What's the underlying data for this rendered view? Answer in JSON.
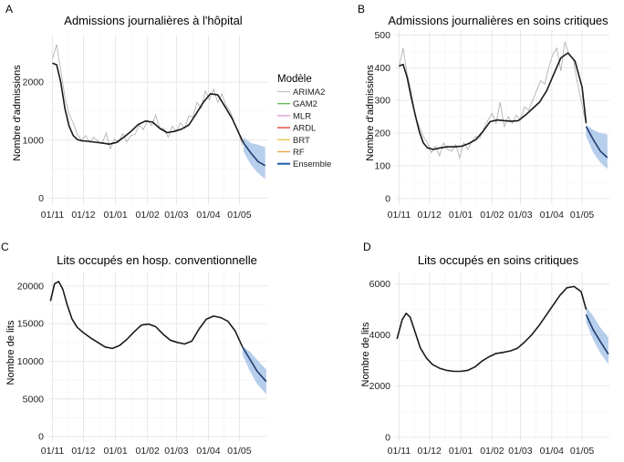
{
  "chart_data": [
    {
      "type": "line",
      "panel_label": "A",
      "title": "Admissions journalières à l'hôpital",
      "ylabel": "Nombre d'admissions",
      "xlabel": "",
      "xlim": [
        "2020-10-28",
        "2021-05-28"
      ],
      "ylim": [
        -120,
        2820
      ],
      "yticks": [
        0,
        1000,
        2000
      ],
      "xticks": [
        {
          "date": "2020-11-01",
          "label": "01/11"
        },
        {
          "date": "2020-12-01",
          "label": "01/12"
        },
        {
          "date": "2021-01-01",
          "label": "01/01"
        },
        {
          "date": "2021-02-01",
          "label": "01/02"
        },
        {
          "date": "2021-03-01",
          "label": "01/03"
        },
        {
          "date": "2021-04-01",
          "label": "01/04"
        },
        {
          "date": "2021-05-01",
          "label": "01/05"
        }
      ],
      "observed": {
        "x": [
          "2020-11-01",
          "2020-11-05",
          "2020-11-09",
          "2020-11-13",
          "2020-11-17",
          "2020-11-21",
          "2020-11-25",
          "2020-11-29",
          "2020-12-03",
          "2020-12-07",
          "2020-12-11",
          "2020-12-15",
          "2020-12-19",
          "2020-12-23",
          "2020-12-27",
          "2020-12-31",
          "2021-01-04",
          "2021-01-08",
          "2021-01-12",
          "2021-01-16",
          "2021-01-20",
          "2021-01-24",
          "2021-01-28",
          "2021-02-01",
          "2021-02-05",
          "2021-02-09",
          "2021-02-13",
          "2021-02-17",
          "2021-02-21",
          "2021-02-25",
          "2021-03-01",
          "2021-03-05",
          "2021-03-09",
          "2021-03-13",
          "2021-03-17",
          "2021-03-21",
          "2021-03-25",
          "2021-03-29",
          "2021-04-02",
          "2021-04-06",
          "2021-04-10",
          "2021-04-14",
          "2021-04-18",
          "2021-04-22",
          "2021-04-26",
          "2021-04-30",
          "2021-05-04"
        ],
        "y": [
          2400,
          2650,
          2200,
          1750,
          1450,
          1300,
          1100,
          1000,
          1080,
          960,
          1050,
          980,
          940,
          1120,
          850,
          1020,
          960,
          1110,
          970,
          1080,
          1100,
          1260,
          1180,
          1350,
          1250,
          1430,
          1200,
          1200,
          1050,
          1240,
          1150,
          1300,
          1200,
          1420,
          1400,
          1650,
          1550,
          1850,
          1700,
          1880,
          1650,
          1800,
          1600,
          1500,
          1300,
          1150,
          900
        ]
      },
      "ensemble": {
        "x": [
          "2020-11-01",
          "2020-11-05",
          "2020-11-09",
          "2020-11-13",
          "2020-11-17",
          "2020-11-21",
          "2020-11-25",
          "2020-11-29",
          "2020-12-05",
          "2020-12-12",
          "2020-12-19",
          "2020-12-26",
          "2021-01-02",
          "2021-01-09",
          "2021-01-16",
          "2021-01-23",
          "2021-01-30",
          "2021-02-06",
          "2021-02-13",
          "2021-02-20",
          "2021-02-27",
          "2021-03-06",
          "2021-03-13",
          "2021-03-20",
          "2021-03-27",
          "2021-04-03",
          "2021-04-10",
          "2021-04-17",
          "2021-04-24",
          "2021-05-01",
          "2021-05-05"
        ],
        "y": [
          2330,
          2300,
          2000,
          1550,
          1250,
          1080,
          1010,
          990,
          980,
          965,
          950,
          930,
          960,
          1050,
          1150,
          1270,
          1330,
          1310,
          1200,
          1130,
          1150,
          1190,
          1260,
          1450,
          1650,
          1800,
          1780,
          1580,
          1370,
          1100,
          950
        ]
      },
      "forecast": {
        "x": [
          "2021-05-05",
          "2021-05-12",
          "2021-05-19",
          "2021-05-26"
        ],
        "y": [
          950,
          780,
          630,
          560
        ],
        "lower": [
          800,
          580,
          430,
          330
        ],
        "upper": [
          1050,
          950,
          920,
          880
        ]
      },
      "legend": {
        "title": "Modèle",
        "placement": "right",
        "entries": [
          {
            "label": "ARIMA2",
            "color": "#c8c8c8"
          },
          {
            "label": "GAM2",
            "color": "#6dbb5a"
          },
          {
            "label": "MLR",
            "color": "#d9a5d9"
          },
          {
            "label": "ARDL",
            "color": "#e0453b"
          },
          {
            "label": "BRT",
            "color": "#e6c84a"
          },
          {
            "label": "RF",
            "color": "#f3a34a"
          },
          {
            "label": "Ensemble",
            "color": "#1c5aa6"
          }
        ]
      }
    },
    {
      "type": "line",
      "panel_label": "B",
      "title": "Admissions journalières en soins critiques",
      "ylabel": "Nombre d'admissions",
      "xlabel": "",
      "xlim": [
        "2020-10-28",
        "2021-05-28"
      ],
      "ylim": [
        -20,
        515
      ],
      "yticks": [
        0,
        100,
        200,
        300,
        400,
        500
      ],
      "xticks": [
        {
          "date": "2020-11-01",
          "label": "01/11"
        },
        {
          "date": "2020-12-01",
          "label": "01/12"
        },
        {
          "date": "2021-01-01",
          "label": "01/01"
        },
        {
          "date": "2021-02-01",
          "label": "01/02"
        },
        {
          "date": "2021-03-01",
          "label": "01/03"
        },
        {
          "date": "2021-04-01",
          "label": "01/04"
        },
        {
          "date": "2021-05-01",
          "label": "01/05"
        }
      ],
      "observed": {
        "x": [
          "2020-11-01",
          "2020-11-05",
          "2020-11-09",
          "2020-11-13",
          "2020-11-17",
          "2020-11-21",
          "2020-11-25",
          "2020-11-29",
          "2020-12-03",
          "2020-12-07",
          "2020-12-11",
          "2020-12-15",
          "2020-12-19",
          "2020-12-23",
          "2020-12-27",
          "2020-12-31",
          "2021-01-04",
          "2021-01-08",
          "2021-01-12",
          "2021-01-16",
          "2021-01-20",
          "2021-01-24",
          "2021-01-28",
          "2021-02-01",
          "2021-02-05",
          "2021-02-09",
          "2021-02-13",
          "2021-02-17",
          "2021-02-21",
          "2021-02-25",
          "2021-03-01",
          "2021-03-05",
          "2021-03-09",
          "2021-03-13",
          "2021-03-17",
          "2021-03-21",
          "2021-03-25",
          "2021-03-29",
          "2021-04-02",
          "2021-04-06",
          "2021-04-10",
          "2021-04-14",
          "2021-04-18",
          "2021-04-22",
          "2021-04-26",
          "2021-04-30",
          "2021-05-04"
        ],
        "y": [
          400,
          460,
          380,
          330,
          250,
          220,
          190,
          170,
          140,
          160,
          130,
          170,
          150,
          145,
          165,
          125,
          170,
          150,
          175,
          190,
          185,
          215,
          240,
          260,
          230,
          295,
          220,
          250,
          230,
          255,
          240,
          280,
          270,
          300,
          330,
          360,
          350,
          400,
          440,
          460,
          390,
          480,
          440,
          430,
          360,
          300,
          240
        ]
      },
      "ensemble": {
        "x": [
          "2020-11-01",
          "2020-11-05",
          "2020-11-09",
          "2020-11-13",
          "2020-11-17",
          "2020-11-21",
          "2020-11-25",
          "2020-11-29",
          "2020-12-05",
          "2020-12-12",
          "2020-12-19",
          "2020-12-26",
          "2021-01-02",
          "2021-01-09",
          "2021-01-16",
          "2021-01-23",
          "2021-01-30",
          "2021-02-06",
          "2021-02-13",
          "2021-02-20",
          "2021-02-27",
          "2021-03-06",
          "2021-03-13",
          "2021-03-20",
          "2021-03-27",
          "2021-04-03",
          "2021-04-10",
          "2021-04-17",
          "2021-04-24",
          "2021-05-01",
          "2021-05-05"
        ],
        "y": [
          405,
          410,
          370,
          310,
          255,
          205,
          170,
          155,
          150,
          155,
          158,
          158,
          160,
          168,
          180,
          205,
          235,
          240,
          238,
          236,
          238,
          255,
          275,
          295,
          330,
          380,
          430,
          445,
          420,
          340,
          230
        ]
      },
      "forecast": {
        "x": [
          "2021-05-05",
          "2021-05-12",
          "2021-05-19",
          "2021-05-26"
        ],
        "y": [
          220,
          180,
          145,
          125
        ],
        "lower": [
          190,
          140,
          110,
          90
        ],
        "upper": [
          225,
          210,
          200,
          195
        ]
      }
    },
    {
      "type": "line",
      "panel_label": "C",
      "title": "Lits occupés en hosp. conventionnelle",
      "ylabel": "Nombre de lits",
      "xlabel": "",
      "xlim": [
        "2020-10-28",
        "2021-05-28"
      ],
      "ylim": [
        -600,
        21800
      ],
      "yticks": [
        0,
        5000,
        10000,
        15000,
        20000
      ],
      "xticks": [
        {
          "date": "2020-11-01",
          "label": "01/11"
        },
        {
          "date": "2020-12-01",
          "label": "01/12"
        },
        {
          "date": "2021-01-01",
          "label": "01/01"
        },
        {
          "date": "2021-02-01",
          "label": "01/02"
        },
        {
          "date": "2021-03-01",
          "label": "01/03"
        },
        {
          "date": "2021-04-01",
          "label": "01/04"
        },
        {
          "date": "2021-05-01",
          "label": "01/05"
        }
      ],
      "ensemble": {
        "x": [
          "2020-10-30",
          "2020-11-03",
          "2020-11-07",
          "2020-11-11",
          "2020-11-15",
          "2020-11-20",
          "2020-11-25",
          "2020-12-01",
          "2020-12-08",
          "2020-12-15",
          "2020-12-22",
          "2020-12-29",
          "2021-01-05",
          "2021-01-12",
          "2021-01-19",
          "2021-01-26",
          "2021-02-02",
          "2021-02-09",
          "2021-02-16",
          "2021-02-23",
          "2021-03-02",
          "2021-03-09",
          "2021-03-16",
          "2021-03-23",
          "2021-03-30",
          "2021-04-06",
          "2021-04-13",
          "2021-04-20",
          "2021-04-27",
          "2021-05-04"
        ],
        "y": [
          18000,
          20300,
          20600,
          19600,
          17600,
          15600,
          14500,
          13800,
          13100,
          12500,
          11900,
          11700,
          12100,
          12900,
          13900,
          14800,
          14950,
          14600,
          13600,
          12800,
          12500,
          12300,
          12700,
          14300,
          15600,
          16000,
          15800,
          15300,
          14000,
          11900
        ]
      },
      "forecast": {
        "x": [
          "2021-05-04",
          "2021-05-11",
          "2021-05-18",
          "2021-05-27"
        ],
        "y": [
          11900,
          10300,
          8700,
          7300
        ],
        "lower": [
          10900,
          8700,
          7000,
          5600
        ],
        "upper": [
          12000,
          11300,
          10200,
          8900
        ]
      }
    },
    {
      "type": "line",
      "panel_label": "D",
      "title": "Lits occupés en soins critiques",
      "ylabel": "Nombre de lits",
      "xlabel": "",
      "xlim": [
        "2020-10-28",
        "2021-05-28"
      ],
      "ylim": [
        -150,
        6450
      ],
      "yticks": [
        0,
        2000,
        4000,
        6000
      ],
      "xticks": [
        {
          "date": "2020-11-01",
          "label": "01/11"
        },
        {
          "date": "2020-12-01",
          "label": "01/12"
        },
        {
          "date": "2021-01-01",
          "label": "01/01"
        },
        {
          "date": "2021-02-01",
          "label": "01/02"
        },
        {
          "date": "2021-03-01",
          "label": "01/03"
        },
        {
          "date": "2021-04-01",
          "label": "01/04"
        },
        {
          "date": "2021-05-01",
          "label": "01/05"
        }
      ],
      "ensemble": {
        "x": [
          "2020-10-30",
          "2020-11-04",
          "2020-11-08",
          "2020-11-12",
          "2020-11-17",
          "2020-11-22",
          "2020-11-28",
          "2020-12-04",
          "2020-12-11",
          "2020-12-18",
          "2020-12-25",
          "2021-01-01",
          "2021-01-08",
          "2021-01-15",
          "2021-01-22",
          "2021-01-29",
          "2021-02-05",
          "2021-02-12",
          "2021-02-19",
          "2021-02-26",
          "2021-03-05",
          "2021-03-12",
          "2021-03-19",
          "2021-03-26",
          "2021-04-02",
          "2021-04-09",
          "2021-04-16",
          "2021-04-23",
          "2021-04-30",
          "2021-05-05"
        ],
        "y": [
          3850,
          4600,
          4850,
          4700,
          4100,
          3500,
          3100,
          2850,
          2700,
          2620,
          2580,
          2580,
          2620,
          2750,
          2980,
          3150,
          3280,
          3320,
          3380,
          3480,
          3720,
          4000,
          4350,
          4750,
          5150,
          5550,
          5850,
          5900,
          5700,
          5000
        ]
      },
      "forecast": {
        "x": [
          "2021-05-05",
          "2021-05-12",
          "2021-05-19",
          "2021-05-27"
        ],
        "y": [
          4800,
          4200,
          3750,
          3250
        ],
        "lower": [
          4500,
          3800,
          3300,
          2850
        ],
        "upper": [
          5100,
          4750,
          4300,
          3900
        ]
      }
    }
  ]
}
